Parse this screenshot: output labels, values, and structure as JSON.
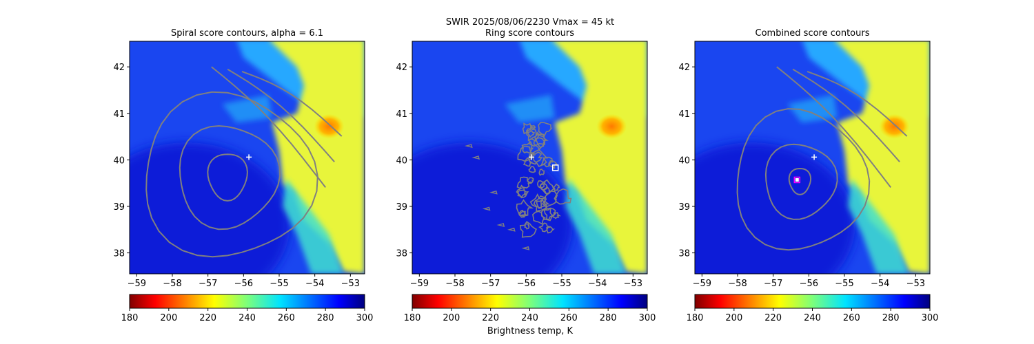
{
  "figure": {
    "suptitle_line1": "SWIR  2025/08/06/2230    Vmax = 45 kt",
    "colorbar_label": "Brightness temp, K"
  },
  "chart_data": [
    {
      "type": "heatmap",
      "title": "Spiral score contours, alpha =  6.1",
      "xlim": [
        -59.2,
        -52.6
      ],
      "ylim": [
        37.55,
        42.55
      ],
      "xticks": [
        -59,
        -58,
        -57,
        -56,
        -55,
        -54,
        -53
      ],
      "yticks": [
        38,
        39,
        40,
        41,
        42
      ],
      "clim": [
        180,
        300
      ],
      "colormap": "jet_r",
      "colorbar_ticks": [
        180,
        200,
        220,
        240,
        260,
        280,
        300
      ],
      "contour_color": "#808080",
      "contour_center": [
        -56.45,
        39.65
      ],
      "contour_levels": [
        {
          "rx": 0.55,
          "ry": 0.5
        },
        {
          "rx": 1.4,
          "ry": 1.1
        },
        {
          "rx": 2.4,
          "ry": 1.75
        }
      ],
      "best_track_marker": {
        "lon": -55.85,
        "lat": 40.06
      },
      "score_marker": null
    },
    {
      "type": "heatmap",
      "title": "Ring score contours",
      "xlim": [
        -59.2,
        -52.6
      ],
      "ylim": [
        37.55,
        42.55
      ],
      "xticks": [
        -59,
        -58,
        -57,
        -56,
        -55,
        -54,
        -53
      ],
      "yticks": [
        38,
        39,
        40,
        41,
        42
      ],
      "clim": [
        180,
        300
      ],
      "colormap": "jet_r",
      "colorbar_ticks": [
        180,
        200,
        220,
        240,
        260,
        280,
        300
      ],
      "contour_color": "#808080",
      "ring_region": {
        "lon_min": -56.2,
        "lon_max": -54.9,
        "lat_min": 38.5,
        "lat_max": 40.7
      },
      "best_track_marker": {
        "lon": -55.85,
        "lat": 40.06
      },
      "score_marker": {
        "lon": -55.18,
        "lat": 39.83,
        "color": "#ffffff"
      }
    },
    {
      "type": "heatmap",
      "title": "Combined score contours",
      "xlim": [
        -59.2,
        -52.6
      ],
      "ylim": [
        37.55,
        42.55
      ],
      "xticks": [
        -59,
        -58,
        -57,
        -56,
        -55,
        -54,
        -53
      ],
      "yticks": [
        38,
        39,
        40,
        41,
        42
      ],
      "clim": [
        180,
        300
      ],
      "colormap": "jet_r",
      "colorbar_ticks": [
        180,
        200,
        220,
        240,
        260,
        280,
        300
      ],
      "contour_color": "#808080",
      "contour_center": [
        -56.25,
        39.55
      ],
      "contour_levels": [
        {
          "rx": 0.3,
          "ry": 0.28
        },
        {
          "rx": 1.0,
          "ry": 0.8
        },
        {
          "rx": 1.85,
          "ry": 1.5
        }
      ],
      "best_track_marker": {
        "lon": -55.85,
        "lat": 40.06
      },
      "score_marker": {
        "lon": -56.33,
        "lat": 39.57,
        "color": "#ff00ff"
      }
    }
  ]
}
